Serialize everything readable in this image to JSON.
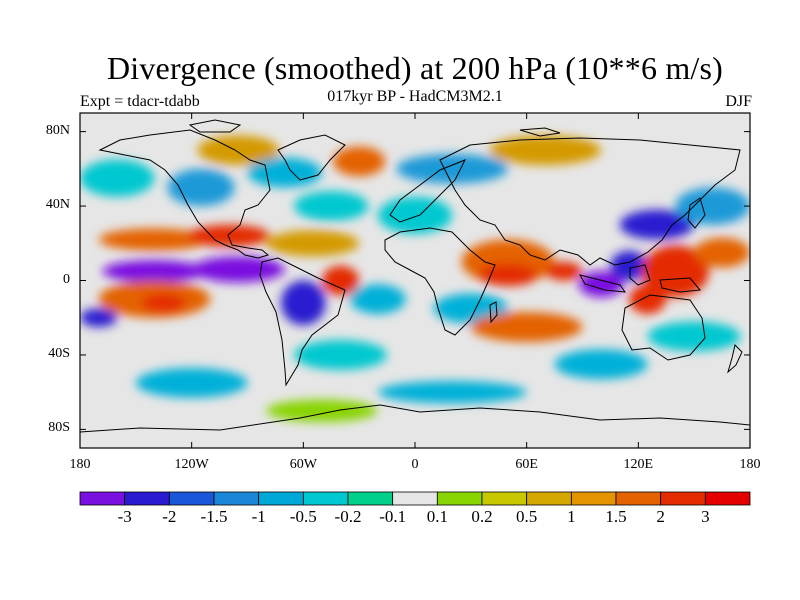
{
  "title": "Divergence (smoothed) at 200 hPa (10**6 m/s)",
  "subtitle": "017kyr BP - HadCM3M2.1",
  "experiment": "Expt = tdacr-tdabb",
  "season": "DJF",
  "map": {
    "lon_range": [
      -180,
      180
    ],
    "lat_range": [
      -90,
      90
    ],
    "y_ticks": [
      {
        "lat": 80,
        "label": "80N"
      },
      {
        "lat": 40,
        "label": "40N"
      },
      {
        "lat": 0,
        "label": "0"
      },
      {
        "lat": -40,
        "label": "40S"
      },
      {
        "lat": -80,
        "label": "80S"
      }
    ],
    "x_ticks": [
      {
        "lon": -180,
        "label": "180"
      },
      {
        "lon": -120,
        "label": "120W"
      },
      {
        "lon": -60,
        "label": "60W"
      },
      {
        "lon": 0,
        "label": "0"
      },
      {
        "lon": 60,
        "label": "60E"
      },
      {
        "lon": 120,
        "label": "120E"
      },
      {
        "lon": 180,
        "label": "180"
      }
    ],
    "background_color": "#e6e6e6",
    "anomaly_blobs": [
      {
        "lon": -140,
        "lat": 5,
        "rlon": 28,
        "rlat": 6,
        "color": "#7a10e0"
      },
      {
        "lon": -95,
        "lat": 6,
        "rlon": 25,
        "rlat": 7,
        "color": "#7a10e0"
      },
      {
        "lon": -170,
        "lat": -20,
        "rlon": 10,
        "rlat": 5,
        "color": "#2a1ad0"
      },
      {
        "lon": -140,
        "lat": -10,
        "rlon": 30,
        "rlat": 10,
        "color": "#e46200"
      },
      {
        "lon": -135,
        "lat": -12,
        "rlon": 12,
        "rlat": 5,
        "color": "#e42c00"
      },
      {
        "lon": -140,
        "lat": 22,
        "rlon": 30,
        "rlat": 6,
        "color": "#e46200"
      },
      {
        "lon": -100,
        "lat": 24,
        "rlon": 22,
        "rlat": 6,
        "color": "#e42c00"
      },
      {
        "lon": -55,
        "lat": 20,
        "rlon": 25,
        "rlat": 7,
        "color": "#d49a00"
      },
      {
        "lon": -160,
        "lat": 55,
        "rlon": 20,
        "rlat": 10,
        "color": "#00c8d0"
      },
      {
        "lon": -115,
        "lat": 50,
        "rlon": 18,
        "rlat": 10,
        "color": "#1a9ad8"
      },
      {
        "lon": -95,
        "lat": 70,
        "rlon": 22,
        "rlat": 8,
        "color": "#d49a00"
      },
      {
        "lon": -70,
        "lat": 58,
        "rlon": 20,
        "rlat": 8,
        "color": "#00b0d8"
      },
      {
        "lon": -45,
        "lat": 40,
        "rlon": 20,
        "rlat": 8,
        "color": "#00c8d0"
      },
      {
        "lon": -30,
        "lat": 64,
        "rlon": 14,
        "rlat": 8,
        "color": "#e46200"
      },
      {
        "lon": -40,
        "lat": 0,
        "rlon": 10,
        "rlat": 8,
        "color": "#e42c00"
      },
      {
        "lon": -60,
        "lat": -12,
        "rlon": 12,
        "rlat": 12,
        "color": "#2a1ad0"
      },
      {
        "lon": -20,
        "lat": -10,
        "rlon": 15,
        "rlat": 8,
        "color": "#00b0d8"
      },
      {
        "lon": 0,
        "lat": 35,
        "rlon": 20,
        "rlat": 10,
        "color": "#00c8d0"
      },
      {
        "lon": 20,
        "lat": 60,
        "rlon": 30,
        "rlat": 8,
        "color": "#1a9ad8"
      },
      {
        "lon": 50,
        "lat": 10,
        "rlon": 25,
        "rlat": 12,
        "color": "#e46200"
      },
      {
        "lon": 50,
        "lat": 3,
        "rlon": 16,
        "rlat": 6,
        "color": "#e42c00"
      },
      {
        "lon": 80,
        "lat": 5,
        "rlon": 10,
        "rlat": 5,
        "color": "#e42c00"
      },
      {
        "lon": 30,
        "lat": -15,
        "rlon": 20,
        "rlat": 8,
        "color": "#00b0d8"
      },
      {
        "lon": 60,
        "lat": -25,
        "rlon": 30,
        "rlat": 8,
        "color": "#e46200"
      },
      {
        "lon": 100,
        "lat": -2,
        "rlon": 12,
        "rlat": 7,
        "color": "#7a10e0"
      },
      {
        "lon": 115,
        "lat": 8,
        "rlon": 10,
        "rlat": 8,
        "color": "#2a1ad0"
      },
      {
        "lon": 140,
        "lat": 5,
        "rlon": 18,
        "rlat": 14,
        "color": "#e42c00"
      },
      {
        "lon": 125,
        "lat": -10,
        "rlon": 10,
        "rlat": 8,
        "color": "#e42c00"
      },
      {
        "lon": 130,
        "lat": 30,
        "rlon": 20,
        "rlat": 8,
        "color": "#2a1ad0"
      },
      {
        "lon": 160,
        "lat": 40,
        "rlon": 20,
        "rlat": 10,
        "color": "#1a9ad8"
      },
      {
        "lon": 165,
        "lat": 15,
        "rlon": 15,
        "rlat": 8,
        "color": "#e46200"
      },
      {
        "lon": 150,
        "lat": -30,
        "rlon": 25,
        "rlat": 8,
        "color": "#00c8d0"
      },
      {
        "lon": 100,
        "lat": -45,
        "rlon": 25,
        "rlat": 8,
        "color": "#00b0d8"
      },
      {
        "lon": -40,
        "lat": -40,
        "rlon": 25,
        "rlat": 8,
        "color": "#00c8d0"
      },
      {
        "lon": -120,
        "lat": -55,
        "rlon": 30,
        "rlat": 8,
        "color": "#00b0d8"
      },
      {
        "lon": 20,
        "lat": -60,
        "rlon": 40,
        "rlat": 6,
        "color": "#00b0d8"
      },
      {
        "lon": -50,
        "lat": -70,
        "rlon": 30,
        "rlat": 6,
        "color": "#88d400"
      },
      {
        "lon": 70,
        "lat": 70,
        "rlon": 30,
        "rlat": 8,
        "color": "#d49a00"
      }
    ]
  },
  "colorbar": {
    "colors": [
      "#7a10e0",
      "#2a1ad0",
      "#1a56d8",
      "#1a86d8",
      "#00a8d8",
      "#00c8d0",
      "#00d08c",
      "#e6e6e6",
      "#88d400",
      "#c8c800",
      "#d4a800",
      "#e49400",
      "#e46200",
      "#e42c00",
      "#e40000"
    ],
    "labels": [
      "-3",
      "-2",
      "-1.5",
      "-1",
      "-0.5",
      "-0.2",
      "-0.1",
      "0.1",
      "0.2",
      "0.5",
      "1",
      "1.5",
      "2",
      "3"
    ]
  }
}
